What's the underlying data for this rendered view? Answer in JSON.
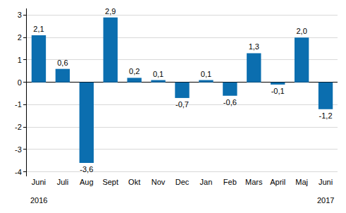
{
  "chart_data": {
    "type": "bar",
    "categories": [
      "Juni",
      "Juli",
      "Aug",
      "Sept",
      "Okt",
      "Nov",
      "Dec",
      "Jan",
      "Feb",
      "Mars",
      "April",
      "Maj",
      "Juni"
    ],
    "values": [
      2.1,
      0.6,
      -3.6,
      2.9,
      0.2,
      0.1,
      -0.7,
      0.1,
      -0.6,
      1.3,
      -0.1,
      2.0,
      -1.2
    ],
    "value_labels": [
      "2,1",
      "0,6",
      "-3,6",
      "2,9",
      "0,2",
      "0,1",
      "-0,7",
      "0,1",
      "-0,6",
      "1,3",
      "-0,1",
      "2,0",
      "-1,2"
    ],
    "data_labels": true,
    "color": "#0b6eaf",
    "ylim": [
      -4.2,
      3.3
    ],
    "yticks": [
      -4,
      -3,
      -2,
      -1,
      0,
      1,
      2,
      3
    ],
    "grid": true,
    "annotations": [
      {
        "text": "2016",
        "x": 0
      },
      {
        "text": "2017",
        "x": 12
      }
    ]
  }
}
